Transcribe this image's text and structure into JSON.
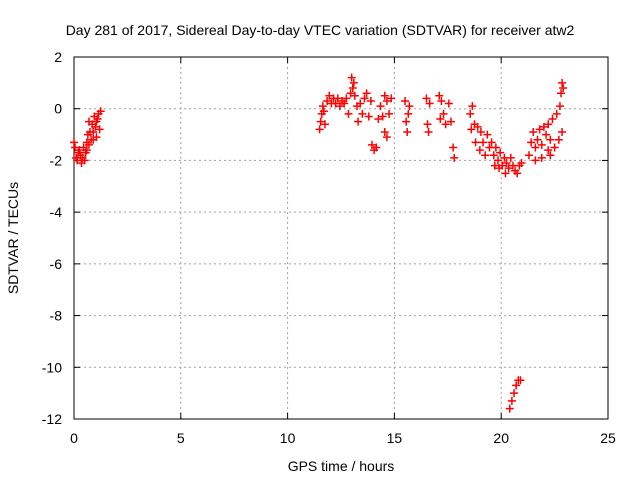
{
  "chart_data": {
    "type": "scatter",
    "title": "Day 281 of 2017, Sidereal Day-to-day VTEC variation (SDTVAR) for receiver atw2",
    "xlabel": "GPS time / hours",
    "ylabel": "SDTVAR / TECUs",
    "xlim": [
      0,
      25
    ],
    "ylim": [
      -12,
      2
    ],
    "x_ticks": [
      0,
      5,
      10,
      15,
      20,
      25
    ],
    "x_tick_labels": [
      "0",
      "5",
      "10",
      "15",
      "20",
      "25"
    ],
    "y_ticks": [
      2,
      0,
      -2,
      -4,
      -6,
      -8,
      -10,
      -12
    ],
    "y_tick_labels": [
      "2",
      "0",
      "-2",
      "-4",
      "-6",
      "-8",
      "-10",
      "-12"
    ],
    "grid": true,
    "marker": "+",
    "colors": {
      "marker": "#ff0000",
      "grid": "#a0a0a0",
      "axis": "#000000"
    },
    "series": [
      {
        "name": "SDTVAR",
        "points": [
          [
            0.0,
            -1.3
          ],
          [
            0.05,
            -1.5
          ],
          [
            0.1,
            -1.9
          ],
          [
            0.15,
            -2.0
          ],
          [
            0.2,
            -1.7
          ],
          [
            0.25,
            -1.6
          ],
          [
            0.3,
            -1.8
          ],
          [
            0.35,
            -2.1
          ],
          [
            0.4,
            -1.9
          ],
          [
            0.45,
            -1.5
          ],
          [
            0.5,
            -2.0
          ],
          [
            0.55,
            -1.7
          ],
          [
            0.6,
            -1.3
          ],
          [
            0.65,
            -1.0
          ],
          [
            0.7,
            -1.4
          ],
          [
            0.75,
            -0.9
          ],
          [
            0.8,
            -1.2
          ],
          [
            0.85,
            -0.6
          ],
          [
            0.9,
            -0.9
          ],
          [
            0.95,
            -0.3
          ],
          [
            1.0,
            -0.7
          ],
          [
            1.05,
            -1.1
          ],
          [
            1.1,
            -0.4
          ],
          [
            1.15,
            -0.2
          ],
          [
            1.2,
            -0.8
          ],
          [
            1.25,
            -0.1
          ],
          [
            0.6,
            -1.6
          ],
          [
            0.7,
            -0.5
          ],
          [
            0.9,
            -1.2
          ],
          [
            1.05,
            -0.5
          ],
          [
            11.5,
            -0.8
          ],
          [
            11.55,
            -0.5
          ],
          [
            11.6,
            -0.2
          ],
          [
            11.65,
            0.1
          ],
          [
            11.7,
            -0.1
          ],
          [
            11.75,
            -0.6
          ],
          [
            11.85,
            0.3
          ],
          [
            11.95,
            0.5
          ],
          [
            12.05,
            0.2
          ],
          [
            12.15,
            0.4
          ],
          [
            12.25,
            0.2
          ],
          [
            12.35,
            0.4
          ],
          [
            12.45,
            0.1
          ],
          [
            12.55,
            0.3
          ],
          [
            12.65,
            0.2
          ],
          [
            12.75,
            0.4
          ],
          [
            12.85,
            -0.2
          ],
          [
            12.95,
            0.6
          ],
          [
            13.0,
            1.2
          ],
          [
            13.05,
            0.8
          ],
          [
            13.1,
            1.0
          ],
          [
            13.15,
            0.5
          ],
          [
            13.25,
            0.1
          ],
          [
            13.3,
            -0.5
          ],
          [
            13.4,
            0.2
          ],
          [
            13.5,
            -0.2
          ],
          [
            13.6,
            0.4
          ],
          [
            13.7,
            0.6
          ],
          [
            13.8,
            -0.3
          ],
          [
            13.9,
            0.3
          ],
          [
            13.95,
            -1.4
          ],
          [
            14.05,
            -1.6
          ],
          [
            14.15,
            -1.5
          ],
          [
            14.25,
            -0.4
          ],
          [
            14.35,
            0.1
          ],
          [
            14.45,
            -0.3
          ],
          [
            14.55,
            0.5
          ],
          [
            14.65,
            0.3
          ],
          [
            14.75,
            -0.2
          ],
          [
            14.85,
            0.4
          ],
          [
            14.55,
            -0.9
          ],
          [
            14.65,
            -1.1
          ],
          [
            15.5,
            0.3
          ],
          [
            15.55,
            -0.5
          ],
          [
            15.6,
            -0.9
          ],
          [
            15.65,
            -0.2
          ],
          [
            15.7,
            0.1
          ],
          [
            16.5,
            0.4
          ],
          [
            16.55,
            -0.6
          ],
          [
            16.6,
            -0.9
          ],
          [
            16.65,
            0.2
          ],
          [
            17.1,
            0.5
          ],
          [
            17.15,
            -0.4
          ],
          [
            17.2,
            0.3
          ],
          [
            17.3,
            -0.2
          ],
          [
            17.4,
            -0.6
          ],
          [
            17.55,
            0.2
          ],
          [
            17.65,
            -0.5
          ],
          [
            17.75,
            -1.5
          ],
          [
            17.8,
            -1.9
          ],
          [
            18.55,
            -0.2
          ],
          [
            18.6,
            -0.8
          ],
          [
            18.65,
            0.1
          ],
          [
            18.75,
            -0.6
          ],
          [
            18.8,
            -1.3
          ],
          [
            18.9,
            -0.7
          ],
          [
            19.0,
            -1.6
          ],
          [
            19.05,
            -0.9
          ],
          [
            19.15,
            -1.3
          ],
          [
            19.25,
            -1.8
          ],
          [
            19.35,
            -1.0
          ],
          [
            19.45,
            -1.5
          ],
          [
            19.55,
            -1.3
          ],
          [
            19.65,
            -1.8
          ],
          [
            19.75,
            -1.5
          ],
          [
            19.85,
            -2.0
          ],
          [
            19.95,
            -1.7
          ],
          [
            20.05,
            -2.2
          ],
          [
            20.15,
            -1.9
          ],
          [
            20.25,
            -2.1
          ],
          [
            20.35,
            -2.3
          ],
          [
            20.45,
            -1.9
          ],
          [
            20.55,
            -2.2
          ],
          [
            20.65,
            -2.4
          ],
          [
            20.75,
            -2.5
          ],
          [
            20.85,
            -2.2
          ],
          [
            20.95,
            -2.1
          ],
          [
            19.7,
            -2.2
          ],
          [
            19.9,
            -2.3
          ],
          [
            20.2,
            -2.5
          ],
          [
            20.4,
            -11.6
          ],
          [
            20.5,
            -11.3
          ],
          [
            20.6,
            -11.0
          ],
          [
            20.7,
            -10.7
          ],
          [
            20.8,
            -10.5
          ],
          [
            20.9,
            -10.5
          ],
          [
            21.3,
            -1.8
          ],
          [
            21.4,
            -1.3
          ],
          [
            21.5,
            -0.9
          ],
          [
            21.6,
            -1.5
          ],
          [
            21.7,
            -1.2
          ],
          [
            21.8,
            -0.8
          ],
          [
            21.9,
            -1.4
          ],
          [
            22.0,
            -0.7
          ],
          [
            22.1,
            -1.0
          ],
          [
            22.2,
            -0.6
          ],
          [
            22.3,
            -1.8
          ],
          [
            22.4,
            -0.4
          ],
          [
            22.5,
            -1.5
          ],
          [
            22.6,
            -0.2
          ],
          [
            22.7,
            -1.2
          ],
          [
            22.75,
            0.1
          ],
          [
            22.8,
            0.6
          ],
          [
            22.85,
            -0.9
          ],
          [
            22.85,
            1.0
          ],
          [
            22.9,
            0.8
          ],
          [
            21.6,
            -2.0
          ],
          [
            21.9,
            -1.9
          ],
          [
            22.2,
            -1.6
          ],
          [
            22.3,
            -1.2
          ]
        ]
      }
    ]
  }
}
